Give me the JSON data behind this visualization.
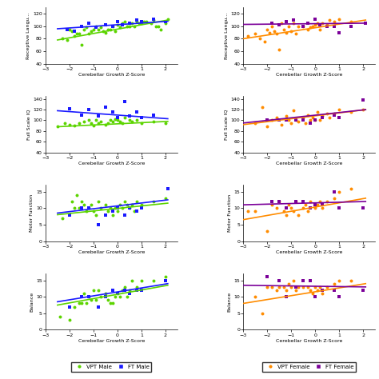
{
  "colors": {
    "vpt_male": "#5cd400",
    "ft_male": "#1a1aff",
    "vpt_female": "#ff8c00",
    "ft_female": "#7b0099"
  },
  "left_plots": [
    {
      "ylabel": "Receptive Langu...",
      "ylim": [
        40,
        130
      ],
      "yticks": [
        40,
        60,
        80,
        100,
        120
      ],
      "vpt_x": [
        -2.3,
        -2.1,
        -2.0,
        -1.9,
        -1.8,
        -1.7,
        -1.6,
        -1.5,
        -1.4,
        -1.3,
        -1.2,
        -1.1,
        -1.0,
        -0.9,
        -0.8,
        -0.7,
        -0.6,
        -0.5,
        -0.4,
        -0.3,
        -0.2,
        -0.1,
        0.0,
        0.1,
        0.2,
        0.3,
        0.4,
        0.5,
        0.6,
        0.7,
        0.8,
        0.9,
        1.0,
        1.1,
        1.2,
        1.4,
        1.5,
        1.6,
        1.7,
        1.8,
        2.0,
        2.1
      ],
      "vpt_y": [
        80,
        78,
        95,
        92,
        85,
        88,
        88,
        70,
        95,
        98,
        88,
        92,
        95,
        100,
        95,
        98,
        92,
        90,
        95,
        95,
        100,
        92,
        102,
        98,
        105,
        108,
        100,
        100,
        105,
        100,
        108,
        105,
        105,
        108,
        108,
        105,
        110,
        100,
        100,
        95,
        105,
        112
      ],
      "ft_x": [
        -2.1,
        -1.8,
        -1.5,
        -1.2,
        -0.9,
        -0.5,
        -0.2,
        0.0,
        0.2,
        0.5,
        0.8,
        1.0,
        1.5,
        2.0
      ],
      "ft_y": [
        95,
        92,
        100,
        105,
        98,
        102,
        100,
        108,
        102,
        105,
        110,
        108,
        112,
        108
      ],
      "vpt_line": [
        -2.5,
        78,
        2.1,
        110
      ],
      "ft_line": [
        -2.5,
        96,
        2.1,
        108
      ]
    },
    {
      "ylabel": "Full Scale IQ",
      "ylim": [
        40,
        145
      ],
      "yticks": [
        40,
        60,
        80,
        100,
        120,
        140
      ],
      "vpt_x": [
        -2.5,
        -2.2,
        -2.0,
        -1.8,
        -1.6,
        -1.4,
        -1.2,
        -1.1,
        -1.0,
        -0.9,
        -0.8,
        -0.7,
        -0.5,
        -0.4,
        -0.3,
        -0.2,
        -0.1,
        0.0,
        0.1,
        0.2,
        0.3,
        0.5,
        0.6,
        0.8,
        1.0,
        1.5,
        2.0
      ],
      "vpt_y": [
        88,
        95,
        92,
        90,
        95,
        98,
        100,
        95,
        90,
        100,
        95,
        98,
        92,
        95,
        100,
        98,
        102,
        100,
        98,
        95,
        105,
        100,
        98,
        100,
        95,
        98,
        95
      ],
      "ft_x": [
        -2.0,
        -1.5,
        -1.2,
        -0.8,
        -0.5,
        -0.2,
        0.0,
        0.3,
        0.5,
        0.8,
        1.0,
        1.5
      ],
      "ft_y": [
        122,
        110,
        120,
        108,
        125,
        115,
        105,
        135,
        108,
        115,
        105,
        110
      ],
      "vpt_line": [
        -2.5,
        88,
        2.1,
        98
      ],
      "ft_line": [
        -2.5,
        118,
        2.1,
        103
      ]
    },
    {
      "ylabel": "Motor Function",
      "ylim": [
        0,
        17
      ],
      "yticks": [
        0,
        5,
        10,
        15
      ],
      "vpt_x": [
        -2.3,
        -1.9,
        -1.8,
        -1.7,
        -1.6,
        -1.5,
        -1.4,
        -1.3,
        -1.2,
        -1.1,
        -1.0,
        -0.9,
        -0.8,
        -0.7,
        -0.5,
        -0.4,
        -0.3,
        -0.2,
        -0.1,
        0.0,
        0.1,
        0.2,
        0.3,
        0.4,
        0.5,
        0.6,
        0.7,
        0.8,
        1.0,
        1.5,
        2.0
      ],
      "vpt_y": [
        7,
        12,
        10,
        14,
        10,
        12,
        11,
        9,
        10,
        11,
        9,
        8,
        12,
        10,
        11,
        9,
        10,
        8,
        10,
        9,
        11,
        10,
        12,
        11,
        10,
        11,
        9,
        12,
        11,
        12,
        13
      ],
      "ft_x": [
        -2.0,
        -1.5,
        -1.2,
        -0.8,
        -0.5,
        -0.2,
        0.0,
        0.3,
        0.5,
        0.8,
        1.0,
        2.1
      ],
      "ft_y": [
        8,
        10,
        10,
        5,
        8,
        9,
        10,
        8,
        10,
        9,
        10,
        16
      ],
      "vpt_line": [
        -2.5,
        8.0,
        2.1,
        11.5
      ],
      "ft_line": [
        -2.5,
        8.5,
        2.1,
        12.5
      ]
    },
    {
      "ylabel": "Balance",
      "ylim": [
        0,
        17
      ],
      "yticks": [
        0,
        5,
        10,
        15
      ],
      "vpt_x": [
        -2.4,
        -2.0,
        -1.8,
        -1.6,
        -1.5,
        -1.4,
        -1.3,
        -1.2,
        -1.1,
        -1.0,
        -0.9,
        -0.8,
        -0.7,
        -0.5,
        -0.4,
        -0.3,
        -0.2,
        -0.1,
        0.0,
        0.1,
        0.2,
        0.3,
        0.4,
        0.5,
        0.6,
        0.8,
        1.0,
        1.5,
        2.0
      ],
      "vpt_y": [
        4,
        3,
        7,
        8,
        8,
        11,
        8,
        10,
        9,
        12,
        9,
        12,
        10,
        11,
        9,
        8,
        8,
        10,
        11,
        10,
        12,
        13,
        10,
        12,
        15,
        13,
        15,
        15,
        16
      ],
      "ft_x": [
        -2.0,
        -1.5,
        -1.2,
        -0.8,
        -0.5,
        -0.2,
        0.0,
        0.3,
        0.5,
        0.8,
        1.0,
        2.0
      ],
      "ft_y": [
        7,
        10,
        10,
        7,
        10,
        12,
        11,
        12,
        11,
        12,
        12,
        15
      ],
      "vpt_line": [
        -2.5,
        7.5,
        2.1,
        13.5
      ],
      "ft_line": [
        -2.5,
        8.5,
        2.1,
        14.0
      ]
    }
  ],
  "right_plots": [
    {
      "ylabel": "Receptive Langu...",
      "ylim": [
        40,
        130
      ],
      "yticks": [
        40,
        60,
        80,
        100,
        120
      ],
      "vpt_x": [
        -2.8,
        -2.5,
        -2.3,
        -2.1,
        -2.0,
        -1.9,
        -1.8,
        -1.7,
        -1.6,
        -1.5,
        -1.4,
        -1.3,
        -1.2,
        -1.1,
        -1.0,
        -0.9,
        -0.8,
        -0.7,
        -0.5,
        -0.3,
        -0.2,
        -0.1,
        0.0,
        0.1,
        0.2,
        0.3,
        0.5,
        0.6,
        0.8,
        1.0,
        1.5
      ],
      "vpt_y": [
        85,
        88,
        80,
        75,
        95,
        90,
        100,
        92,
        88,
        62,
        105,
        95,
        90,
        100,
        92,
        105,
        88,
        100,
        100,
        95,
        98,
        100,
        102,
        105,
        95,
        105,
        102,
        110,
        108,
        112,
        108
      ],
      "ft_x": [
        -1.8,
        -1.5,
        -1.2,
        -0.9,
        -0.5,
        -0.3,
        0.0,
        0.2,
        0.5,
        0.8,
        1.0,
        1.5,
        2.1
      ],
      "ft_y": [
        105,
        102,
        108,
        110,
        100,
        105,
        112,
        102,
        100,
        100,
        90,
        100,
        105
      ],
      "vpt_line": [
        -3.0,
        80,
        2.1,
        110
      ],
      "ft_line": [
        -3.0,
        103,
        2.1,
        105
      ]
    },
    {
      "ylabel": "Full Scale IQ",
      "ylim": [
        40,
        145
      ],
      "yticks": [
        40,
        60,
        80,
        100,
        120,
        140
      ],
      "vpt_x": [
        -2.5,
        -2.2,
        -2.0,
        -1.8,
        -1.6,
        -1.4,
        -1.2,
        -1.1,
        -1.0,
        -0.9,
        -0.8,
        -0.7,
        -0.5,
        -0.4,
        -0.3,
        -0.2,
        -0.1,
        0.0,
        0.1,
        0.2,
        0.3,
        0.5,
        0.6,
        0.8,
        1.0,
        1.5,
        2.0
      ],
      "vpt_y": [
        95,
        125,
        88,
        100,
        105,
        92,
        108,
        100,
        95,
        118,
        100,
        98,
        105,
        95,
        110,
        100,
        105,
        100,
        115,
        100,
        108,
        112,
        105,
        112,
        120,
        115,
        120
      ],
      "ft_x": [
        -2.0,
        -1.5,
        -1.2,
        -0.8,
        -0.5,
        -0.2,
        0.0,
        0.3,
        0.8,
        1.0,
        2.0
      ],
      "ft_y": [
        100,
        100,
        100,
        100,
        100,
        95,
        100,
        105,
        110,
        105,
        138
      ],
      "vpt_line": [
        -3.0,
        92,
        2.1,
        120
      ],
      "ft_line": [
        -3.0,
        95,
        2.1,
        120
      ]
    },
    {
      "ylabel": "Motor Function",
      "ylim": [
        0,
        17
      ],
      "yticks": [
        0,
        5,
        10,
        15
      ],
      "vpt_x": [
        -2.8,
        -2.5,
        -2.0,
        -1.8,
        -1.6,
        -1.5,
        -1.3,
        -1.2,
        -1.1,
        -1.0,
        -0.9,
        -0.8,
        -0.7,
        -0.5,
        -0.4,
        -0.3,
        -0.2,
        0.0,
        0.1,
        0.2,
        0.3,
        0.5,
        0.8,
        1.0,
        1.5
      ],
      "vpt_y": [
        9,
        9,
        3,
        11,
        10,
        12,
        9,
        8,
        11,
        10,
        9,
        12,
        8,
        10,
        11,
        9,
        12,
        10,
        11,
        12,
        10,
        12,
        13,
        15,
        16
      ],
      "ft_x": [
        -1.8,
        -1.5,
        -1.2,
        -0.8,
        -0.5,
        -0.2,
        0.0,
        0.3,
        0.8,
        1.0,
        2.0
      ],
      "ft_y": [
        12,
        12,
        10,
        12,
        12,
        10,
        11,
        11,
        15,
        10,
        10
      ],
      "vpt_line": [
        -3.0,
        6.5,
        2.1,
        13.0
      ],
      "ft_line": [
        -3.0,
        11.0,
        2.1,
        12.0
      ]
    },
    {
      "ylabel": "Balance",
      "ylim": [
        0,
        17
      ],
      "yticks": [
        0,
        5,
        10,
        15
      ],
      "vpt_x": [
        -2.5,
        -2.2,
        -2.0,
        -1.8,
        -1.6,
        -1.5,
        -1.3,
        -1.2,
        -1.1,
        -1.0,
        -0.9,
        -0.8,
        -0.7,
        -0.5,
        -0.3,
        -0.2,
        -0.1,
        0.0,
        0.1,
        0.2,
        0.3,
        0.5,
        0.8,
        1.0,
        1.5
      ],
      "vpt_y": [
        10,
        5,
        13,
        13,
        12,
        13,
        13,
        12,
        14,
        13,
        15,
        12,
        13,
        13,
        13,
        12,
        11,
        13,
        12,
        13,
        11,
        13,
        14,
        15,
        15
      ],
      "ft_x": [
        -2.0,
        -1.5,
        -1.2,
        -0.8,
        -0.5,
        -0.2,
        0.0,
        0.3,
        0.8,
        1.0,
        2.0
      ],
      "ft_y": [
        16,
        15,
        10,
        13,
        15,
        15,
        10,
        12,
        12,
        10,
        12
      ],
      "vpt_line": [
        -3.0,
        8.0,
        2.1,
        14.0
      ],
      "ft_line": [
        -3.0,
        13.5,
        2.1,
        13.0
      ]
    }
  ],
  "xlabel": "Cerebellar Growth Z-Score",
  "xlim": [
    -3,
    2.5
  ],
  "xticks": [
    -3,
    -2,
    -1,
    0,
    1,
    2
  ],
  "legend_left": [
    {
      "label": "VPT Male",
      "color": "#5cd400",
      "marker": "o"
    },
    {
      "label": "FT Male",
      "color": "#1a1aff",
      "marker": "s"
    }
  ],
  "legend_right": [
    {
      "label": "VPT Female",
      "color": "#ff8c00",
      "marker": "o"
    },
    {
      "label": "FT Female",
      "color": "#7b0099",
      "marker": "s"
    }
  ]
}
